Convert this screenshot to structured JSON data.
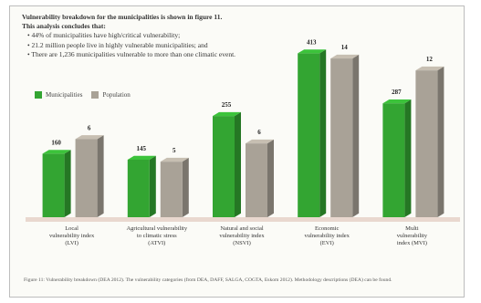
{
  "figure": {
    "intro_title": "Vulnerability breakdown for the municipalities is shown in figure 11.",
    "intro_subtitle": "This analysis concludes that:",
    "bullets": [
      "• 44% of municipalities have high/critical vulnerability;",
      "• 21.2 million people live in highly vulnerable municipalities; and",
      "• There are 1,236 municipalities vulnerable to more than one climatic event."
    ],
    "caption": "Figure 11: Vulnerability breakdown (DEA 2012). The vulnerability categories (from DEA, DAFF, SALGA, COGTA, Eskom 2012). Methodology descriptions (DEA) can be found."
  },
  "chart_data": {
    "type": "bar",
    "categories": [
      [
        "Local",
        "vulnerability index",
        "(LVI)"
      ],
      [
        "Agricultural vulnerability",
        "to climatic stress",
        "(ATVI)"
      ],
      [
        "Natural and social",
        "vulnerability index",
        "(NSVI)"
      ],
      [
        "Economic",
        "vulnerability index",
        "(EVI)"
      ],
      [
        "Multi",
        "vulnerability",
        "index (MVI)"
      ]
    ],
    "series": [
      {
        "name": "Municipalities",
        "values": [
          160,
          145,
          255,
          413,
          287
        ],
        "labels": [
          "160",
          "145",
          "255",
          "413",
          "287"
        ]
      },
      {
        "name": "Population",
        "values": [
          197,
          140,
          186,
          400,
          370
        ],
        "labels": [
          "6",
          "5",
          "6",
          "14",
          "12"
        ]
      }
    ],
    "ylim": [
      0,
      460
    ],
    "grid": false,
    "legend_position": "top-left",
    "colors": {
      "Municipalities": "#33a532",
      "Population": "#a9a297"
    }
  }
}
